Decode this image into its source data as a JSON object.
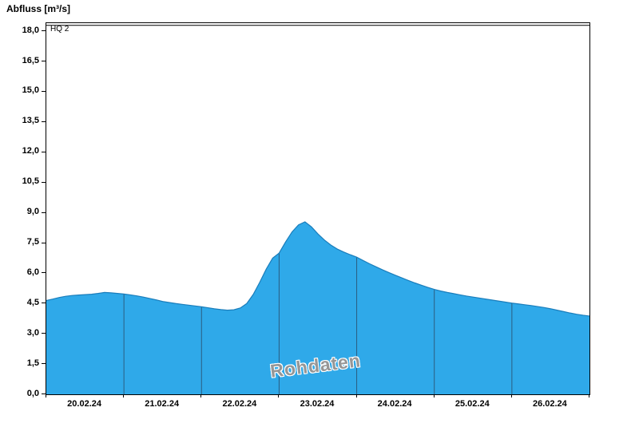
{
  "header": {
    "title": "Abfluss [m³/s]"
  },
  "watermark": "Rohdaten",
  "threshold": {
    "label": "HQ 2",
    "value": 18.29
  },
  "colors": {
    "area_fill": "#2fa9e9",
    "area_stroke": "#1a7dbb",
    "day_line": "#2b5d80",
    "axis": "#000000"
  },
  "chart_data": {
    "type": "area",
    "title": "Abfluss [m³/s]",
    "ylabel": "Abfluss [m³/s]",
    "xlabel": "",
    "ylim": [
      0,
      18.4
    ],
    "grid": "vertical-day-boundaries-within-area-only",
    "legend": "none",
    "annotations": [
      {
        "label": "HQ 2",
        "type": "threshold-line",
        "y": 18.29
      },
      {
        "label": "Rohdaten",
        "type": "watermark"
      }
    ],
    "y_tick_values": [
      0,
      1.5,
      3,
      4.5,
      6,
      7.5,
      9,
      10.5,
      12,
      13.5,
      15,
      16.5,
      18
    ],
    "y_tick_labels": [
      "0,0",
      "1,5",
      "3,0",
      "4,5",
      "6,0",
      "7,5",
      "9,0",
      "10,5",
      "12,0",
      "13,5",
      "15,0",
      "16,5",
      "18,0"
    ],
    "x_tick_labels": [
      "20.02.24",
      "21.02.24",
      "22.02.24",
      "23.02.24",
      "24.02.24",
      "25.02.24",
      "26.02.24"
    ],
    "sample_interval_hours": 2,
    "total_hours": 168,
    "values": [
      4.65,
      4.72,
      4.8,
      4.86,
      4.9,
      4.92,
      4.94,
      4.96,
      5.0,
      5.05,
      5.03,
      5.0,
      4.97,
      4.93,
      4.88,
      4.82,
      4.75,
      4.68,
      4.6,
      4.55,
      4.5,
      4.46,
      4.42,
      4.38,
      4.34,
      4.29,
      4.24,
      4.2,
      4.17,
      4.19,
      4.28,
      4.5,
      4.95,
      5.55,
      6.2,
      6.75,
      7.0,
      7.55,
      8.05,
      8.4,
      8.55,
      8.3,
      7.95,
      7.65,
      7.4,
      7.2,
      7.05,
      6.92,
      6.8,
      6.63,
      6.47,
      6.32,
      6.17,
      6.03,
      5.9,
      5.77,
      5.64,
      5.52,
      5.41,
      5.3,
      5.2,
      5.12,
      5.05,
      4.99,
      4.93,
      4.87,
      4.82,
      4.77,
      4.72,
      4.67,
      4.62,
      4.57,
      4.52,
      4.48,
      4.44,
      4.4,
      4.35,
      4.3,
      4.24,
      4.17,
      4.1,
      4.03,
      3.97,
      3.92,
      3.88
    ]
  }
}
